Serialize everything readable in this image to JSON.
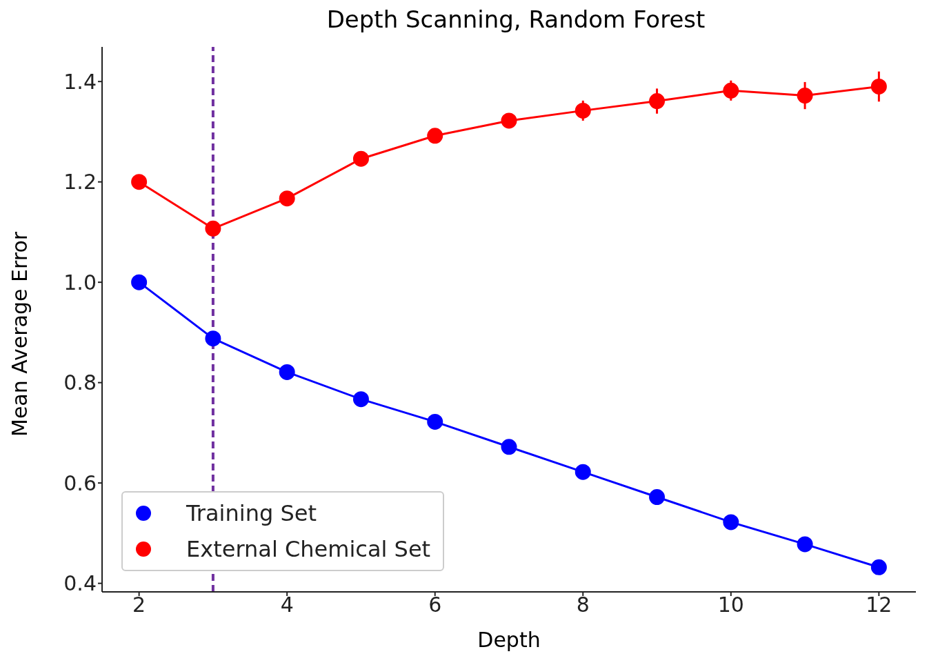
{
  "chart_data": {
    "type": "line",
    "title": "Depth Scanning, Random Forest",
    "xlabel": "Depth",
    "ylabel": "Mean Average Error",
    "x": [
      2,
      3,
      4,
      5,
      6,
      7,
      8,
      9,
      10,
      11,
      12
    ],
    "series": [
      {
        "name": "Training Set",
        "color": "#0000ff",
        "values": [
          1.0,
          0.888,
          0.821,
          0.767,
          0.722,
          0.672,
          0.622,
          0.572,
          0.522,
          0.478,
          0.432
        ]
      },
      {
        "name": "External Chemical Set",
        "color": "#ff0000",
        "values": [
          1.2,
          1.107,
          1.167,
          1.246,
          1.292,
          1.322,
          1.342,
          1.361,
          1.382,
          1.372,
          1.39
        ],
        "errors": [
          null,
          null,
          null,
          null,
          null,
          0.015,
          0.02,
          0.025,
          0.02,
          0.027,
          0.03
        ]
      }
    ],
    "xlim": [
      1.5,
      12.5
    ],
    "xticks": [
      2,
      4,
      6,
      8,
      10,
      12
    ],
    "ylim": [
      0.383,
      1.469
    ],
    "yticks": [
      {
        "value": 0.4,
        "label": "0.4"
      },
      {
        "value": 0.6,
        "label": "0.6"
      },
      {
        "value": 0.8,
        "label": "0.8"
      },
      {
        "value": 1.0,
        "label": "1.0"
      },
      {
        "value": 1.2,
        "label": "1.2"
      },
      {
        "value": 1.4,
        "label": "1.4"
      }
    ],
    "ref_lines": [
      {
        "axis": "x",
        "value": 3,
        "color": "#7030a0",
        "line_style": "dashed"
      }
    ],
    "marker": "circle",
    "line_style": "solid",
    "legend": "bottom left",
    "grid": false
  }
}
